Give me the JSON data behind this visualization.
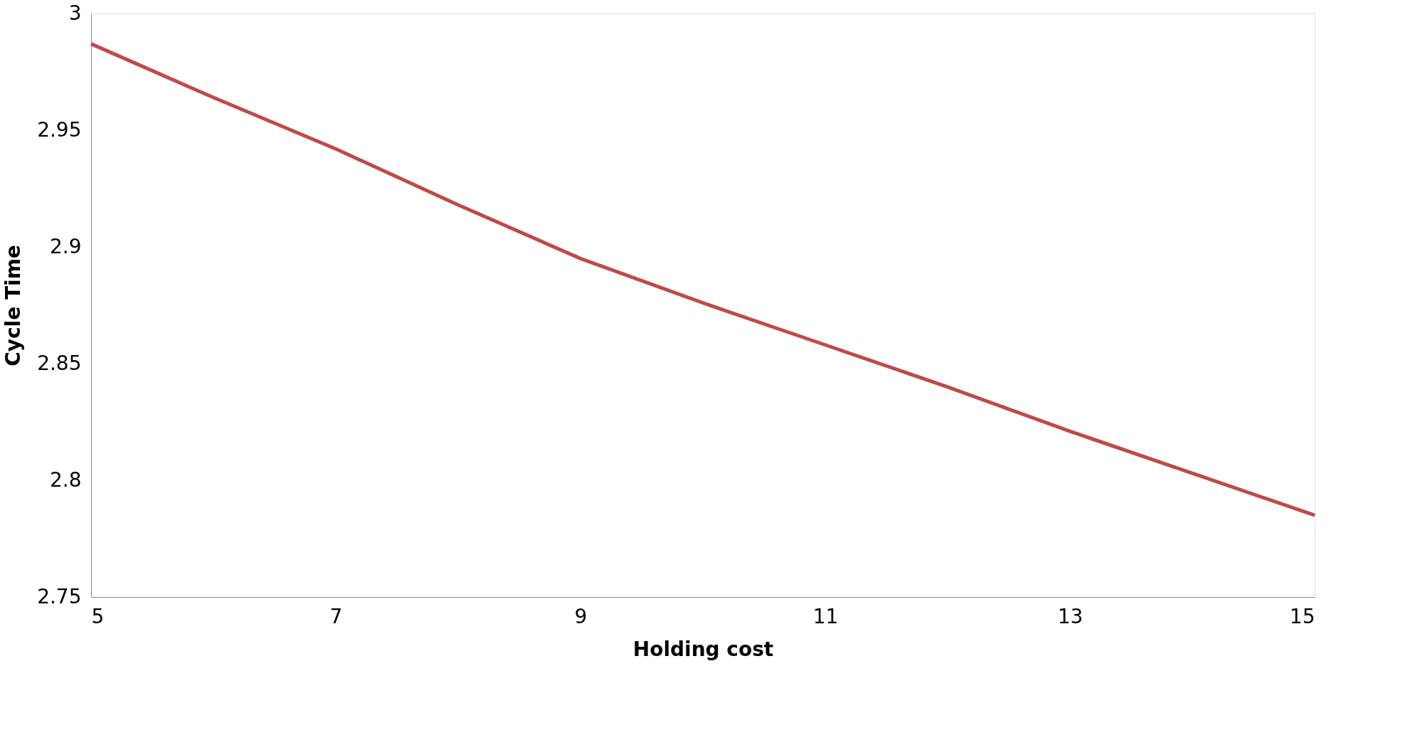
{
  "chart_data": {
    "type": "line",
    "xlabel": "Holding cost",
    "ylabel": "Cycle Time",
    "x": [
      5,
      6,
      7,
      8,
      9,
      10,
      11,
      12,
      13,
      14,
      15
    ],
    "series": [
      {
        "color": "#be4b48",
        "values": [
          2.987,
          2.964,
          2.942,
          2.918,
          2.895,
          2.876,
          2.858,
          2.84,
          2.821,
          2.803,
          2.785
        ]
      }
    ],
    "xlim": [
      5,
      15
    ],
    "xticks": [
      5,
      7,
      9,
      11,
      13,
      15
    ],
    "ylim": [
      2.75,
      3
    ],
    "yticks": [
      2.75,
      2.8,
      2.85,
      2.9,
      2.95,
      3
    ],
    "grid": false,
    "legend": false,
    "marker": "none",
    "line_style": "solid"
  }
}
